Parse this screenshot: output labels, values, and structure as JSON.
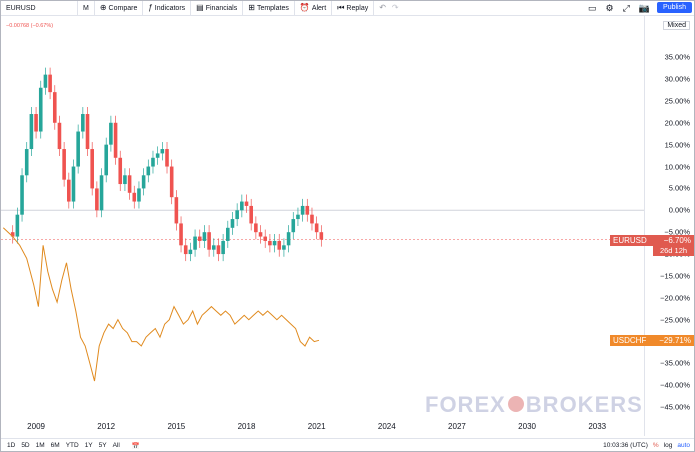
{
  "toolbar": {
    "symbol": "EURUSD",
    "interval": "M",
    "compare": "Compare",
    "indicators": "Indicators",
    "financials": "Financials",
    "templates": "Templates",
    "alert": "Alert",
    "replay": "Replay",
    "publish": "Publish"
  },
  "legend": {
    "change": "−0.00768 (−0.67%)",
    "scale_mode": "Mixed"
  },
  "price_axis": [
    "35.00%",
    "30.00%",
    "25.00%",
    "20.00%",
    "15.00%",
    "10.00%",
    "5.00%",
    "0.00%",
    "−5.00%",
    "−10.00%",
    "−15.00%",
    "−20.00%",
    "−25.00%",
    "−30.00%",
    "−35.00%",
    "−40.00%",
    "−45.00%"
  ],
  "time_axis": [
    "2009",
    "2012",
    "2015",
    "2018",
    "2021",
    "2024",
    "2027",
    "2030",
    "2033"
  ],
  "tags": {
    "eurusd_label": "EURUSD",
    "eurusd_value": "−6.70%",
    "eurusd_countdown": "26d 12h",
    "usdchf_label": "USDCHF",
    "usdchf_value": "−29.71%"
  },
  "bottom": {
    "ranges": [
      "1D",
      "5D",
      "1M",
      "6M",
      "YTD",
      "1Y",
      "5Y",
      "All"
    ],
    "time": "10:03:36 (UTC)",
    "percent": "%",
    "log": "log",
    "auto": "auto"
  },
  "watermark": {
    "left": "FOREX",
    "right": "BROKERS"
  },
  "colors": {
    "up": "#26a69a",
    "down": "#ef5350",
    "usdchf": "#e08a1e",
    "tag_eurusd": "#e05a4f",
    "tag_usdchf": "#f0892a",
    "publish": "#2962ff"
  },
  "chart_data": {
    "type": "line",
    "y_unit": "percent",
    "ylim": [
      -47,
      38
    ],
    "xlim": [
      2007.5,
      2035
    ],
    "series": [
      {
        "name": "EURUSD",
        "style": "candles",
        "points": [
          [
            2008.0,
            -6
          ],
          [
            2008.2,
            -1
          ],
          [
            2008.4,
            8
          ],
          [
            2008.6,
            14
          ],
          [
            2008.8,
            22
          ],
          [
            2009.0,
            18
          ],
          [
            2009.2,
            28
          ],
          [
            2009.4,
            31
          ],
          [
            2009.6,
            27
          ],
          [
            2009.8,
            20
          ],
          [
            2010.0,
            14
          ],
          [
            2010.2,
            7
          ],
          [
            2010.4,
            2
          ],
          [
            2010.6,
            10
          ],
          [
            2010.8,
            18
          ],
          [
            2011.0,
            22
          ],
          [
            2011.2,
            14
          ],
          [
            2011.4,
            5
          ],
          [
            2011.6,
            0
          ],
          [
            2011.8,
            8
          ],
          [
            2012.0,
            15
          ],
          [
            2012.2,
            20
          ],
          [
            2012.4,
            12
          ],
          [
            2012.6,
            6
          ],
          [
            2012.8,
            8
          ],
          [
            2013.0,
            4
          ],
          [
            2013.2,
            2
          ],
          [
            2013.4,
            5
          ],
          [
            2013.6,
            8
          ],
          [
            2013.8,
            10
          ],
          [
            2014.0,
            12
          ],
          [
            2014.2,
            13
          ],
          [
            2014.4,
            14
          ],
          [
            2014.6,
            10
          ],
          [
            2014.8,
            3
          ],
          [
            2015.0,
            -3
          ],
          [
            2015.2,
            -8
          ],
          [
            2015.4,
            -10
          ],
          [
            2015.6,
            -9
          ],
          [
            2015.8,
            -6
          ],
          [
            2016.0,
            -7
          ],
          [
            2016.2,
            -5
          ],
          [
            2016.4,
            -9
          ],
          [
            2016.6,
            -8
          ],
          [
            2016.8,
            -10
          ],
          [
            2017.0,
            -7
          ],
          [
            2017.2,
            -4
          ],
          [
            2017.4,
            -2
          ],
          [
            2017.6,
            0
          ],
          [
            2017.8,
            2
          ],
          [
            2018.0,
            1
          ],
          [
            2018.2,
            -3
          ],
          [
            2018.4,
            -5
          ],
          [
            2018.6,
            -6
          ],
          [
            2018.8,
            -7
          ],
          [
            2019.0,
            -8
          ],
          [
            2019.2,
            -7
          ],
          [
            2019.4,
            -9
          ],
          [
            2019.6,
            -8
          ],
          [
            2019.8,
            -5
          ],
          [
            2020.0,
            -2
          ],
          [
            2020.2,
            -1
          ],
          [
            2020.4,
            1
          ],
          [
            2020.6,
            -1
          ],
          [
            2020.8,
            -3
          ],
          [
            2021.0,
            -5
          ],
          [
            2021.2,
            -6.7
          ]
        ]
      },
      {
        "name": "USDCHF",
        "style": "line",
        "points": [
          [
            2007.6,
            -4
          ],
          [
            2008.0,
            -6
          ],
          [
            2008.3,
            -8
          ],
          [
            2008.6,
            -11
          ],
          [
            2008.9,
            -17
          ],
          [
            2009.1,
            -22
          ],
          [
            2009.3,
            -8
          ],
          [
            2009.5,
            -14
          ],
          [
            2009.7,
            -18
          ],
          [
            2009.9,
            -21
          ],
          [
            2010.1,
            -16
          ],
          [
            2010.3,
            -12
          ],
          [
            2010.5,
            -18
          ],
          [
            2010.7,
            -23
          ],
          [
            2010.9,
            -29
          ],
          [
            2011.1,
            -31
          ],
          [
            2011.3,
            -35
          ],
          [
            2011.5,
            -39
          ],
          [
            2011.7,
            -31
          ],
          [
            2011.9,
            -28
          ],
          [
            2012.1,
            -26
          ],
          [
            2012.3,
            -27
          ],
          [
            2012.5,
            -25
          ],
          [
            2012.7,
            -27
          ],
          [
            2012.9,
            -28
          ],
          [
            2013.1,
            -30
          ],
          [
            2013.3,
            -30
          ],
          [
            2013.5,
            -31
          ],
          [
            2013.7,
            -29
          ],
          [
            2013.9,
            -28
          ],
          [
            2014.1,
            -27
          ],
          [
            2014.3,
            -29
          ],
          [
            2014.5,
            -26
          ],
          [
            2014.7,
            -25
          ],
          [
            2014.9,
            -22
          ],
          [
            2015.1,
            -24
          ],
          [
            2015.3,
            -26
          ],
          [
            2015.5,
            -25
          ],
          [
            2015.7,
            -23
          ],
          [
            2015.9,
            -26
          ],
          [
            2016.1,
            -24
          ],
          [
            2016.3,
            -23
          ],
          [
            2016.5,
            -22
          ],
          [
            2016.7,
            -23
          ],
          [
            2016.9,
            -24
          ],
          [
            2017.1,
            -23
          ],
          [
            2017.3,
            -24
          ],
          [
            2017.5,
            -26
          ],
          [
            2017.7,
            -25
          ],
          [
            2017.9,
            -24
          ],
          [
            2018.1,
            -25
          ],
          [
            2018.3,
            -24
          ],
          [
            2018.5,
            -23
          ],
          [
            2018.7,
            -24
          ],
          [
            2018.9,
            -23
          ],
          [
            2019.1,
            -24
          ],
          [
            2019.3,
            -25
          ],
          [
            2019.5,
            -24
          ],
          [
            2019.7,
            -25
          ],
          [
            2019.9,
            -26
          ],
          [
            2020.1,
            -27
          ],
          [
            2020.3,
            -30
          ],
          [
            2020.5,
            -31
          ],
          [
            2020.7,
            -29
          ],
          [
            2020.9,
            -30
          ],
          [
            2021.1,
            -29.71
          ]
        ]
      }
    ]
  }
}
